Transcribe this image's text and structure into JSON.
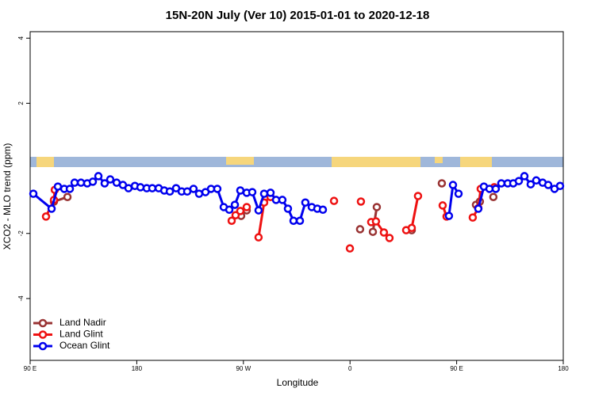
{
  "chart_data": {
    "type": "line",
    "title": "15N-20N July (Ver 10)   2015-01-01 to 2020-12-18",
    "xlabel": "Longitude",
    "ylabel": "XCO2 - MLO trend (ppm)",
    "xlim": [
      90,
      540
    ],
    "xticks": [
      {
        "value": 90,
        "label": "90 E"
      },
      {
        "value": 180,
        "label": "180"
      },
      {
        "value": 270,
        "label": "90 W"
      },
      {
        "value": 360,
        "label": "0"
      },
      {
        "value": 450,
        "label": "90 E"
      },
      {
        "value": 540,
        "label": "180"
      }
    ],
    "ylim": [
      -5.9,
      4.2
    ],
    "yticks": [
      -4,
      -2,
      2,
      4
    ],
    "legend": "bottom-left",
    "series": [
      {
        "name": "Land Nadir",
        "color": "#993333",
        "x": [
          110.1,
          121.5,
          null,
          268.1,
          272.8,
          null,
          368.5,
          null,
          379.3,
          382.6,
          null,
          412.1,
          null,
          437.5,
          null,
          466.3,
          469.6,
          null,
          481.0
        ],
        "values": [
          -1.02,
          -0.88,
          null,
          -1.46,
          -1.29,
          null,
          -1.87,
          null,
          -1.95,
          -1.19,
          null,
          -1.9,
          null,
          -0.46,
          null,
          -1.12,
          -1.02,
          null,
          -0.88
        ]
      },
      {
        "name": "Land Glint",
        "color": "#ee1111",
        "x": [
          103.4,
          110.1,
          110.8,
          null,
          260.1,
          263.4,
          267.4,
          272.8,
          null,
          282.8,
          287.5,
          292.9,
          null,
          346.5,
          null,
          359.9,
          null,
          369.2,
          null,
          377.9,
          381.9,
          388.6,
          393.3,
          null,
          407.4,
          412.1,
          417.4,
          null,
          438.2,
          441.5,
          null,
          463.6,
          468.3,
          470.3,
          481.7
        ],
        "values": [
          -1.48,
          -0.97,
          -0.66,
          null,
          -1.61,
          -1.44,
          -1.31,
          -1.19,
          null,
          -2.12,
          -1.05,
          -0.88,
          null,
          -1.0,
          null,
          -2.46,
          null,
          -1.02,
          null,
          -1.65,
          -1.63,
          -1.97,
          -2.14,
          null,
          -1.9,
          -1.83,
          -0.85,
          null,
          -1.14,
          -1.48,
          null,
          -1.51,
          -1.22,
          -0.63,
          -0.58
        ]
      },
      {
        "name": "Ocean Glint",
        "color": "#0000ee",
        "x": [
          92.7,
          108.1,
          113.4,
          118.8,
          123.5,
          127.5,
          132.9,
          138.2,
          142.9,
          147.6,
          152.9,
          157.6,
          163.0,
          168.3,
          173.0,
          178.4,
          183.1,
          188.4,
          193.1,
          198.5,
          203.2,
          207.9,
          213.2,
          217.9,
          222.6,
          227.9,
          232.6,
          238.0,
          242.7,
          248.0,
          253.4,
          258.1,
          262.8,
          267.4,
          272.8,
          277.5,
          282.8,
          287.5,
          292.9,
          297.6,
          302.9,
          307.6,
          312.3,
          317.7,
          322.3,
          327.7,
          332.4,
          337.1,
          null,
          443.5,
          446.9,
          451.6,
          null,
          468.3,
          473.0,
          477.7,
          483.0,
          487.7,
          493.1,
          497.8,
          502.5,
          507.2,
          512.5,
          517.2,
          522.6,
          527.3,
          532.6,
          537.3
        ],
        "values": [
          -0.78,
          -1.24,
          -0.56,
          -0.63,
          -0.63,
          -0.44,
          -0.44,
          -0.46,
          -0.41,
          -0.24,
          -0.46,
          -0.34,
          -0.44,
          -0.51,
          -0.61,
          -0.54,
          -0.58,
          -0.61,
          -0.61,
          -0.61,
          -0.68,
          -0.71,
          -0.61,
          -0.71,
          -0.71,
          -0.63,
          -0.78,
          -0.73,
          -0.63,
          -0.63,
          -1.19,
          -1.27,
          -1.12,
          -0.68,
          -0.75,
          -0.73,
          -1.29,
          -0.78,
          -0.75,
          -0.97,
          -0.97,
          -1.24,
          -1.61,
          -1.61,
          -1.05,
          -1.19,
          -1.24,
          -1.27,
          null,
          -1.46,
          -0.51,
          -0.78,
          null,
          -1.24,
          -0.56,
          -0.63,
          -0.63,
          -0.46,
          -0.46,
          -0.46,
          -0.39,
          -0.24,
          -0.49,
          -0.37,
          -0.44,
          -0.51,
          -0.63,
          -0.54
        ]
      }
    ]
  }
}
